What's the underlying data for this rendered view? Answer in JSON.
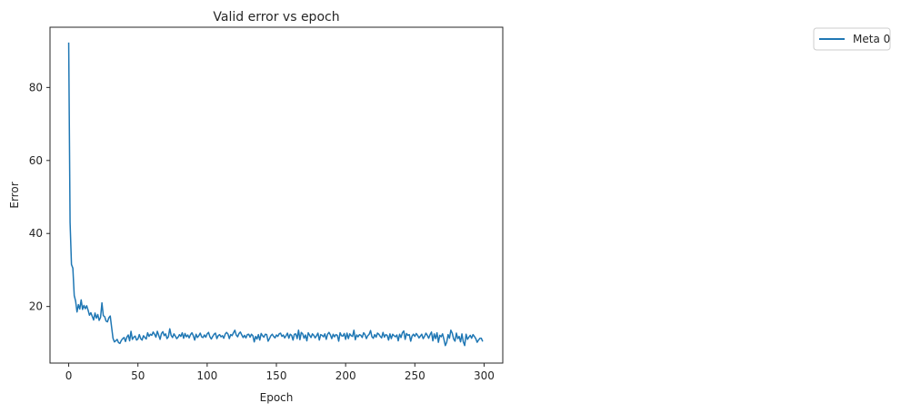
{
  "chart_data": {
    "type": "line",
    "title": "Valid error vs epoch",
    "xlabel": "Epoch",
    "ylabel": "Error",
    "xlim": [
      -13.5,
      313.5
    ],
    "ylim": [
      4.5,
      96.5
    ],
    "xticks": [
      0,
      50,
      100,
      150,
      200,
      250,
      300
    ],
    "yticks": [
      20,
      40,
      60,
      80
    ],
    "grid": false,
    "legend_position": "outside-top-right",
    "series": [
      {
        "name": "Meta 0",
        "color": "#1f77b4",
        "x": [
          0,
          1,
          2,
          3,
          4,
          5,
          6,
          7,
          8,
          9,
          10,
          11,
          12,
          13,
          14,
          15,
          16,
          17,
          18,
          19,
          20,
          21,
          22,
          23,
          24,
          25,
          26,
          27,
          28,
          29,
          30,
          31,
          32,
          33,
          34,
          35,
          36,
          37,
          38,
          39,
          40,
          41,
          42,
          43,
          44,
          45,
          46,
          47,
          48,
          49,
          50,
          51,
          52,
          53,
          54,
          55,
          56,
          57,
          58,
          59,
          60,
          61,
          62,
          63,
          64,
          65,
          66,
          67,
          68,
          69,
          70,
          71,
          72,
          73,
          74,
          75,
          76,
          77,
          78,
          79,
          80,
          81,
          82,
          83,
          84,
          85,
          86,
          87,
          88,
          89,
          90,
          91,
          92,
          93,
          94,
          95,
          96,
          97,
          98,
          99,
          100,
          101,
          102,
          103,
          104,
          105,
          106,
          107,
          108,
          109,
          110,
          111,
          112,
          113,
          114,
          115,
          116,
          117,
          118,
          119,
          120,
          121,
          122,
          123,
          124,
          125,
          126,
          127,
          128,
          129,
          130,
          131,
          132,
          133,
          134,
          135,
          136,
          137,
          138,
          139,
          140,
          141,
          142,
          143,
          144,
          145,
          146,
          147,
          148,
          149,
          150,
          151,
          152,
          153,
          154,
          155,
          156,
          157,
          158,
          159,
          160,
          161,
          162,
          163,
          164,
          165,
          166,
          167,
          168,
          169,
          170,
          171,
          172,
          173,
          174,
          175,
          176,
          177,
          178,
          179,
          180,
          181,
          182,
          183,
          184,
          185,
          186,
          187,
          188,
          189,
          190,
          191,
          192,
          193,
          194,
          195,
          196,
          197,
          198,
          199,
          200,
          201,
          202,
          203,
          204,
          205,
          206,
          207,
          208,
          209,
          210,
          211,
          212,
          213,
          214,
          215,
          216,
          217,
          218,
          219,
          220,
          221,
          222,
          223,
          224,
          225,
          226,
          227,
          228,
          229,
          230,
          231,
          232,
          233,
          234,
          235,
          236,
          237,
          238,
          239,
          240,
          241,
          242,
          243,
          244,
          245,
          246,
          247,
          248,
          249,
          250,
          251,
          252,
          253,
          254,
          255,
          256,
          257,
          258,
          259,
          260,
          261,
          262,
          263,
          264,
          265,
          266,
          267,
          268,
          269,
          270,
          271,
          272,
          273,
          274,
          275,
          276,
          277,
          278,
          279,
          280,
          281,
          282,
          283,
          284,
          285,
          286,
          287,
          288,
          289,
          290,
          291,
          292,
          293,
          294,
          295,
          296,
          297,
          298,
          299
        ],
        "values": [
          92.3,
          43.0,
          31.5,
          30.5,
          23.0,
          21.5,
          18.5,
          20.5,
          19.3,
          21.8,
          19.2,
          20.3,
          19.4,
          20.2,
          19.0,
          17.6,
          18.3,
          17.3,
          16.3,
          18.2,
          16.8,
          17.8,
          16.2,
          17.0,
          21.0,
          17.5,
          17.2,
          16.0,
          15.8,
          16.9,
          17.4,
          14.3,
          11.3,
          10.3,
          10.6,
          11.0,
          10.1,
          9.9,
          10.7,
          11.2,
          11.5,
          10.4,
          11.6,
          12.2,
          10.6,
          13.2,
          11.0,
          11.6,
          11.9,
          10.8,
          11.1,
          12.3,
          11.2,
          10.8,
          12.0,
          11.5,
          11.1,
          12.8,
          11.8,
          12.4,
          12.1,
          13.0,
          12.4,
          11.6,
          13.2,
          12.1,
          11.0,
          12.6,
          13.1,
          12.0,
          12.5,
          11.2,
          11.7,
          13.9,
          12.1,
          11.5,
          12.5,
          11.9,
          11.2,
          11.6,
          12.3,
          11.8,
          12.8,
          11.3,
          12.6,
          11.7,
          12.2,
          11.4,
          12.3,
          12.8,
          12.0,
          10.8,
          12.4,
          11.5,
          12.0,
          12.7,
          11.7,
          11.5,
          12.2,
          11.6,
          12.5,
          12.9,
          11.7,
          11.1,
          11.8,
          12.4,
          12.7,
          11.2,
          12.0,
          12.3,
          11.7,
          12.0,
          11.3,
          12.4,
          12.9,
          12.5,
          11.2,
          12.3,
          12.0,
          12.8,
          13.5,
          12.2,
          11.7,
          12.6,
          13.0,
          12.2,
          11.5,
          12.1,
          11.4,
          12.3,
          12.4,
          11.6,
          12.4,
          12.0,
          10.3,
          11.8,
          11.1,
          12.3,
          10.8,
          12.6,
          12.0,
          11.6,
          12.4,
          12.3,
          10.5,
          11.2,
          12.0,
          12.4,
          11.8,
          11.4,
          12.2,
          11.8,
          12.5,
          12.7,
          11.8,
          12.2,
          11.4,
          12.0,
          12.7,
          11.3,
          12.4,
          12.1,
          10.8,
          12.4,
          12.5,
          11.2,
          13.5,
          10.9,
          12.9,
          12.5,
          11.3,
          12.2,
          10.6,
          12.8,
          12.1,
          11.5,
          12.5,
          12.1,
          11.4,
          12.0,
          12.7,
          10.8,
          12.3,
          12.1,
          11.7,
          12.5,
          11.0,
          12.4,
          12.9,
          12.2,
          11.2,
          12.4,
          11.7,
          12.3,
          12.1,
          10.5,
          12.8,
          12.0,
          11.9,
          12.6,
          11.0,
          12.7,
          11.2,
          12.5,
          12.0,
          11.8,
          13.5,
          10.9,
          12.2,
          11.7,
          12.3,
          12.1,
          11.5,
          12.8,
          12.3,
          11.2,
          12.0,
          12.4,
          13.4,
          11.7,
          11.3,
          12.3,
          11.6,
          12.7,
          12.4,
          11.8,
          11.4,
          12.9,
          11.6,
          12.3,
          12.1,
          10.8,
          12.5,
          11.2,
          12.4,
          12.0,
          11.7,
          12.2,
          10.6,
          12.4,
          11.5,
          12.8,
          13.3,
          11.0,
          12.6,
          12.1,
          12.3,
          10.5,
          11.9,
          12.4,
          11.8,
          12.6,
          12.1,
          11.4,
          11.9,
          12.4,
          11.2,
          11.8,
          12.7,
          12.1,
          11.3,
          12.3,
          13.0,
          10.6,
          12.5,
          11.2,
          12.8,
          10.2,
          12.1,
          11.7,
          12.5,
          11.0,
          9.3,
          10.2,
          12.3,
          11.3,
          13.5,
          12.7,
          11.1,
          10.5,
          12.7,
          11.2,
          11.8,
          10.3,
          12.5,
          10.3,
          9.3,
          12.4,
          11.0,
          11.6,
          12.1,
          11.3,
          12.3,
          11.8,
          11.2,
          10.2,
          10.8,
          11.3,
          11.3,
          10.4
        ]
      }
    ]
  }
}
